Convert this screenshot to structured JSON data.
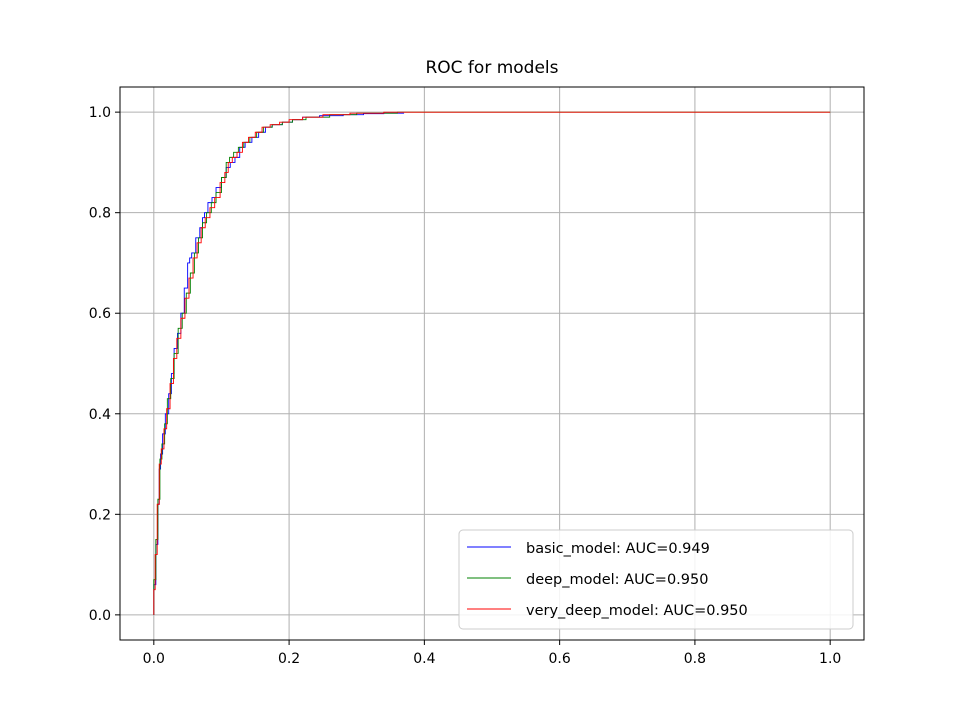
{
  "chart_data": {
    "type": "line",
    "title": "ROC for models",
    "xlabel": "",
    "ylabel": "",
    "xlim": [
      -0.05,
      1.05
    ],
    "ylim": [
      -0.05,
      1.05
    ],
    "xticks": [
      0.0,
      0.2,
      0.4,
      0.6,
      0.8,
      1.0
    ],
    "xtick_labels": [
      "0.0",
      "0.2",
      "0.4",
      "0.6",
      "0.8",
      "1.0"
    ],
    "yticks": [
      0.0,
      0.2,
      0.4,
      0.6,
      0.8,
      1.0
    ],
    "ytick_labels": [
      "0.0",
      "0.2",
      "0.4",
      "0.6",
      "0.8",
      "1.0"
    ],
    "grid": true,
    "legend_position": "lower-right",
    "series": [
      {
        "name": "basic_model: AUC=0.949",
        "color": "#0000ff",
        "x": [
          0.0,
          0.0,
          0.003,
          0.003,
          0.006,
          0.006,
          0.008,
          0.008,
          0.01,
          0.01,
          0.013,
          0.013,
          0.017,
          0.017,
          0.022,
          0.022,
          0.026,
          0.026,
          0.03,
          0.03,
          0.035,
          0.035,
          0.04,
          0.04,
          0.045,
          0.045,
          0.05,
          0.05,
          0.053,
          0.053,
          0.056,
          0.056,
          0.062,
          0.062,
          0.068,
          0.068,
          0.072,
          0.072,
          0.075,
          0.075,
          0.08,
          0.08,
          0.086,
          0.086,
          0.092,
          0.092,
          0.1,
          0.1,
          0.107,
          0.107,
          0.113,
          0.113,
          0.12,
          0.12,
          0.127,
          0.127,
          0.135,
          0.135,
          0.145,
          0.145,
          0.155,
          0.155,
          0.165,
          0.165,
          0.175,
          0.175,
          0.19,
          0.19,
          0.205,
          0.205,
          0.22,
          0.22,
          0.245,
          0.245,
          0.28,
          0.28,
          0.31,
          0.31,
          0.34,
          0.34,
          0.37
        ],
        "y": [
          0.0,
          0.06,
          0.06,
          0.14,
          0.14,
          0.22,
          0.22,
          0.29,
          0.29,
          0.32,
          0.32,
          0.36,
          0.36,
          0.4,
          0.4,
          0.44,
          0.44,
          0.48,
          0.48,
          0.53,
          0.53,
          0.56,
          0.56,
          0.6,
          0.6,
          0.65,
          0.65,
          0.7,
          0.7,
          0.71,
          0.71,
          0.72,
          0.72,
          0.75,
          0.75,
          0.77,
          0.77,
          0.79,
          0.79,
          0.8,
          0.8,
          0.82,
          0.82,
          0.83,
          0.83,
          0.85,
          0.85,
          0.87,
          0.87,
          0.89,
          0.89,
          0.9,
          0.9,
          0.91,
          0.91,
          0.93,
          0.93,
          0.94,
          0.94,
          0.95,
          0.95,
          0.96,
          0.96,
          0.97,
          0.97,
          0.975,
          0.975,
          0.98,
          0.98,
          0.985,
          0.985,
          0.99,
          0.99,
          0.993,
          0.993,
          0.995,
          0.995,
          0.997,
          0.997,
          0.998,
          0.998
        ]
      },
      {
        "name": "deep_model: AUC=0.950",
        "color": "#008000",
        "x": [
          0.0,
          0.0,
          0.003,
          0.003,
          0.006,
          0.006,
          0.009,
          0.009,
          0.012,
          0.012,
          0.016,
          0.016,
          0.02,
          0.02,
          0.025,
          0.025,
          0.03,
          0.03,
          0.036,
          0.036,
          0.042,
          0.042,
          0.048,
          0.048,
          0.054,
          0.054,
          0.06,
          0.06,
          0.066,
          0.066,
          0.072,
          0.072,
          0.078,
          0.078,
          0.085,
          0.085,
          0.092,
          0.092,
          0.1,
          0.1,
          0.107,
          0.107,
          0.112,
          0.112,
          0.118,
          0.118,
          0.125,
          0.125,
          0.133,
          0.133,
          0.142,
          0.142,
          0.152,
          0.152,
          0.162,
          0.162,
          0.175,
          0.175,
          0.19,
          0.19,
          0.205,
          0.205,
          0.225,
          0.225,
          0.26,
          0.26,
          0.3,
          0.3,
          0.36,
          0.36,
          1.0
        ],
        "y": [
          0.0,
          0.07,
          0.07,
          0.15,
          0.15,
          0.23,
          0.23,
          0.31,
          0.31,
          0.34,
          0.34,
          0.38,
          0.38,
          0.43,
          0.43,
          0.47,
          0.47,
          0.52,
          0.52,
          0.57,
          0.57,
          0.6,
          0.6,
          0.64,
          0.64,
          0.68,
          0.68,
          0.72,
          0.72,
          0.75,
          0.75,
          0.78,
          0.78,
          0.8,
          0.8,
          0.82,
          0.82,
          0.84,
          0.84,
          0.87,
          0.87,
          0.9,
          0.9,
          0.91,
          0.91,
          0.92,
          0.92,
          0.93,
          0.93,
          0.94,
          0.94,
          0.95,
          0.95,
          0.96,
          0.96,
          0.97,
          0.97,
          0.975,
          0.975,
          0.98,
          0.98,
          0.985,
          0.985,
          0.99,
          0.99,
          0.995,
          0.995,
          0.998,
          0.998,
          1.0,
          1.0
        ]
      },
      {
        "name": "very_deep_model: AUC=0.950",
        "color": "#ff0000",
        "x": [
          0.0,
          0.0,
          0.002,
          0.002,
          0.005,
          0.005,
          0.008,
          0.008,
          0.011,
          0.011,
          0.015,
          0.015,
          0.019,
          0.019,
          0.024,
          0.024,
          0.029,
          0.029,
          0.034,
          0.034,
          0.04,
          0.04,
          0.046,
          0.046,
          0.052,
          0.052,
          0.058,
          0.058,
          0.064,
          0.064,
          0.07,
          0.07,
          0.076,
          0.076,
          0.083,
          0.083,
          0.09,
          0.09,
          0.098,
          0.098,
          0.105,
          0.105,
          0.11,
          0.11,
          0.116,
          0.116,
          0.123,
          0.123,
          0.131,
          0.131,
          0.14,
          0.14,
          0.15,
          0.15,
          0.16,
          0.16,
          0.172,
          0.172,
          0.186,
          0.186,
          0.2,
          0.2,
          0.22,
          0.22,
          0.25,
          0.25,
          0.29,
          0.29,
          0.34,
          0.34,
          1.0
        ],
        "y": [
          0.0,
          0.05,
          0.05,
          0.12,
          0.12,
          0.22,
          0.22,
          0.3,
          0.3,
          0.33,
          0.33,
          0.37,
          0.37,
          0.41,
          0.41,
          0.46,
          0.46,
          0.51,
          0.51,
          0.55,
          0.55,
          0.59,
          0.59,
          0.63,
          0.63,
          0.67,
          0.67,
          0.71,
          0.71,
          0.74,
          0.74,
          0.77,
          0.77,
          0.79,
          0.79,
          0.81,
          0.81,
          0.83,
          0.83,
          0.86,
          0.86,
          0.88,
          0.88,
          0.9,
          0.9,
          0.91,
          0.91,
          0.92,
          0.92,
          0.94,
          0.94,
          0.95,
          0.95,
          0.96,
          0.96,
          0.97,
          0.97,
          0.975,
          0.975,
          0.98,
          0.98,
          0.985,
          0.985,
          0.99,
          0.99,
          0.995,
          0.995,
          0.998,
          0.998,
          1.0,
          1.0
        ]
      }
    ]
  }
}
